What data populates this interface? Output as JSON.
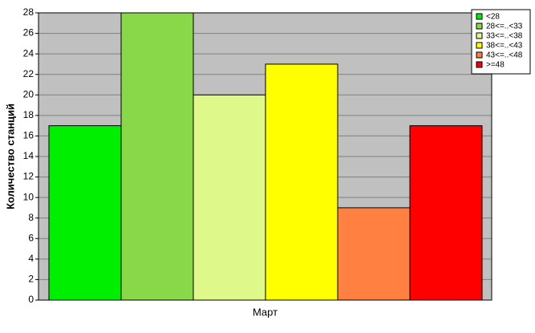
{
  "chart_data": {
    "type": "bar",
    "categories": [
      "Март"
    ],
    "y_label": "Количество станций",
    "series": [
      {
        "name": "<28",
        "color": "#00ee00",
        "values": [
          17
        ]
      },
      {
        "name": "28<=..<33",
        "color": "#88d84a",
        "values": [
          28
        ]
      },
      {
        "name": "33<=..<38",
        "color": "#def98a",
        "values": [
          20
        ]
      },
      {
        "name": "38<=..<43",
        "color": "#ffff00",
        "values": [
          23
        ]
      },
      {
        "name": "43<=..<48",
        "color": "#ff8040",
        "values": [
          9
        ]
      },
      {
        "name": ">=48",
        "color": "#ff0000",
        "values": [
          17
        ]
      }
    ],
    "ylim": [
      0,
      28
    ],
    "yticks": [
      0,
      2,
      4,
      6,
      8,
      10,
      12,
      14,
      16,
      18,
      20,
      22,
      24,
      26,
      28
    ],
    "grid": true,
    "legend": "upper-right"
  }
}
